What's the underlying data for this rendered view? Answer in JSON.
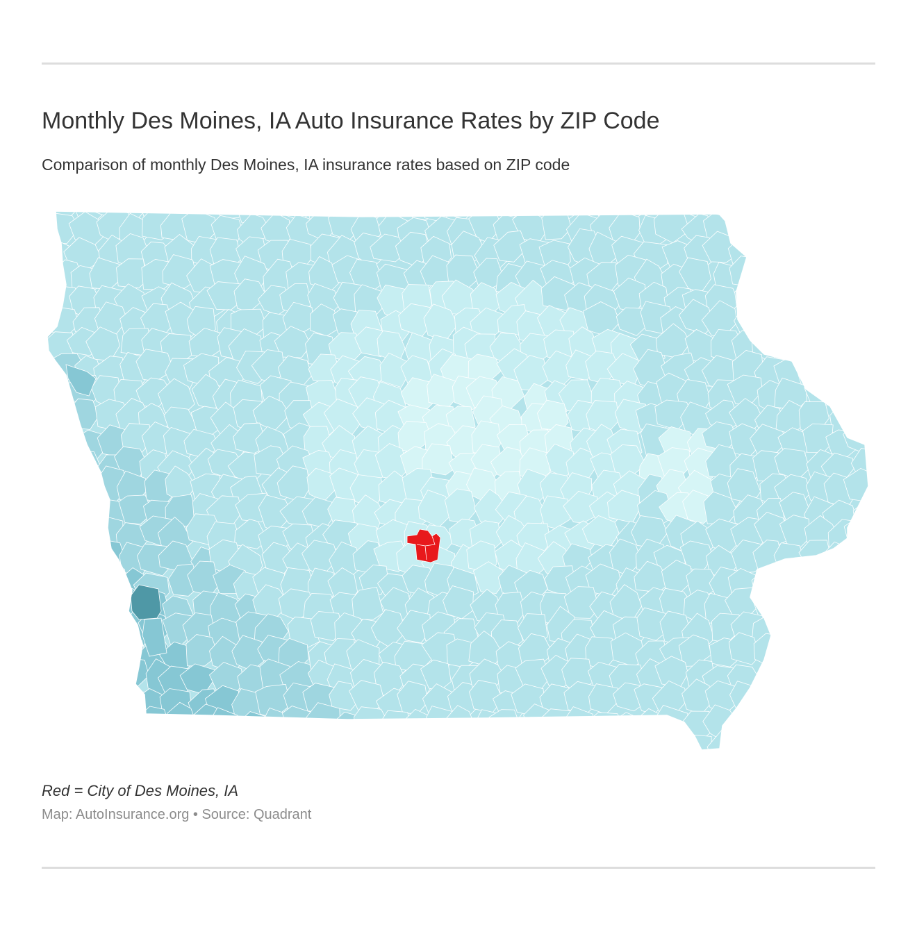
{
  "header": {
    "title": "Monthly Des Moines, IA Auto Insurance Rates by ZIP Code",
    "subtitle": "Comparison of monthly Des Moines, IA insurance rates based on ZIP code"
  },
  "map": {
    "region": "Iowa",
    "highlight_city": "Des Moines, IA",
    "colors": {
      "highlight": "#e8191c",
      "base": "#b3e3ea",
      "lightest": "#d6f5f6",
      "light": "#c6eef2",
      "medium": "#9fd6e0",
      "dark": "#86c7d4",
      "darkest": "#4f98a6",
      "border": "#ffffff"
    }
  },
  "footer": {
    "legend_note": "Red = City of Des Moines, IA",
    "credit": "Map: AutoInsurance.org • Source: Quadrant"
  }
}
